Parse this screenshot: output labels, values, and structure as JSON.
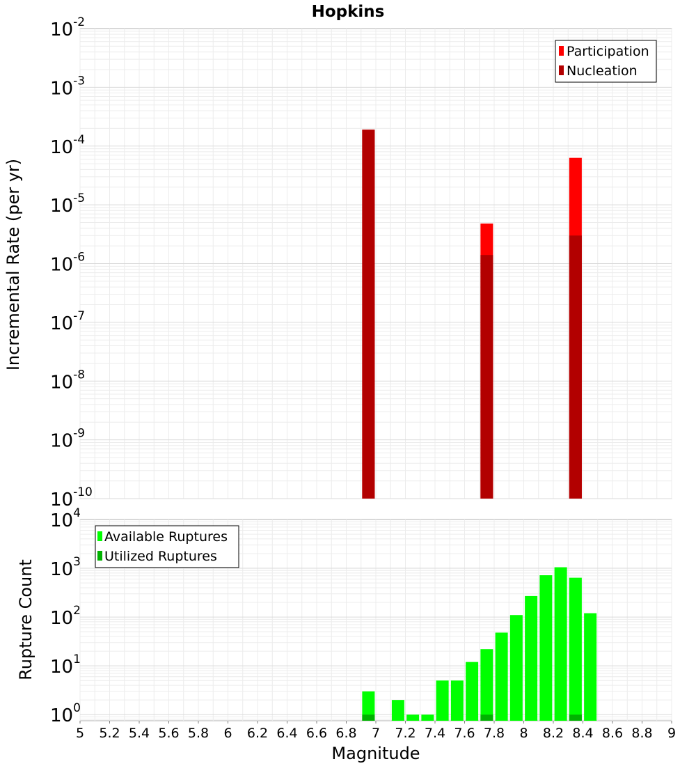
{
  "chart_data": [
    {
      "type": "bar",
      "title": "Hopkins",
      "xlabel": "",
      "ylabel": "Incremental Rate (per yr)",
      "yscale": "log",
      "ylim": [
        1e-10,
        0.01
      ],
      "xlim": [
        5,
        9
      ],
      "grid": true,
      "legend_position": "top-right",
      "y_ticks": [
        {
          "base": "10",
          "exp": "-10",
          "value": 1e-10
        },
        {
          "base": "10",
          "exp": "-9",
          "value": 1e-09
        },
        {
          "base": "10",
          "exp": "-8",
          "value": 1e-08
        },
        {
          "base": "10",
          "exp": "-7",
          "value": 1e-07
        },
        {
          "base": "10",
          "exp": "-6",
          "value": 1e-06
        },
        {
          "base": "10",
          "exp": "-5",
          "value": 1e-05
        },
        {
          "base": "10",
          "exp": "-4",
          "value": 0.0001
        },
        {
          "base": "10",
          "exp": "-3",
          "value": 0.001
        },
        {
          "base": "10",
          "exp": "-2",
          "value": 0.01
        }
      ],
      "series": [
        {
          "name": "Participation",
          "color": "#ff0000",
          "x": [
            6.95,
            7.75,
            8.35
          ],
          "values": [
            0.00019,
            4.8e-06,
            6.3e-05
          ]
        },
        {
          "name": "Nucleation",
          "color": "#b20000",
          "x": [
            6.95,
            7.75,
            8.35
          ],
          "values": [
            0.00019,
            1.4e-06,
            3e-06
          ]
        }
      ]
    },
    {
      "type": "bar",
      "title": "",
      "xlabel": "Magnitude",
      "ylabel": "Rupture Count",
      "yscale": "log",
      "ylim": [
        0.75,
        10000
      ],
      "xlim": [
        5,
        9
      ],
      "grid": true,
      "legend_position": "top-left",
      "x_ticks": [
        "5",
        "5.2",
        "5.4",
        "5.6",
        "5.8",
        "6",
        "6.2",
        "6.4",
        "6.6",
        "6.8",
        "7",
        "7.2",
        "7.4",
        "7.6",
        "7.8",
        "8",
        "8.2",
        "8.4",
        "8.6",
        "8.8",
        "9"
      ],
      "y_ticks": [
        {
          "base": "10",
          "exp": "0",
          "value": 1
        },
        {
          "base": "10",
          "exp": "1",
          "value": 10
        },
        {
          "base": "10",
          "exp": "2",
          "value": 100
        },
        {
          "base": "10",
          "exp": "3",
          "value": 1000
        },
        {
          "base": "10",
          "exp": "4",
          "value": 10000
        }
      ],
      "series": [
        {
          "name": "Available Ruptures",
          "color": "#00ff00",
          "x": [
            6.95,
            7.15,
            7.25,
            7.35,
            7.45,
            7.55,
            7.65,
            7.75,
            7.85,
            7.95,
            8.05,
            8.15,
            8.25,
            8.35,
            8.45
          ],
          "values": [
            3,
            2,
            1,
            1,
            5,
            5,
            12,
            22,
            48,
            110,
            270,
            720,
            1050,
            640,
            120
          ]
        },
        {
          "name": "Utilized Ruptures",
          "color": "#00b200",
          "x": [
            6.95,
            7.75,
            8.35
          ],
          "values": [
            1,
            1,
            1
          ]
        }
      ]
    }
  ]
}
